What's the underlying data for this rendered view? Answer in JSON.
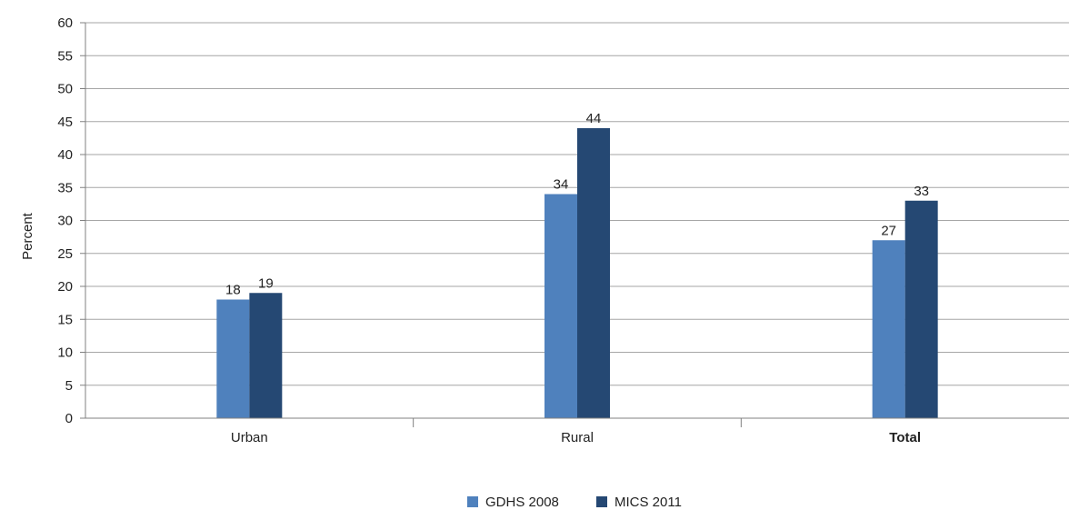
{
  "chart_data": {
    "type": "bar",
    "title": "",
    "xlabel": "",
    "ylabel": "Percent",
    "ylim": [
      0,
      60
    ],
    "ytick_step": 5,
    "grid": true,
    "legend_position": "bottom-center",
    "categories": [
      "Urban",
      "Rural",
      "Total"
    ],
    "bold_categories": [
      "Total"
    ],
    "series": [
      {
        "name": "GDHS 2008",
        "color": "#4f81bd",
        "values": [
          18,
          34,
          27
        ]
      },
      {
        "name": "MICS 2011",
        "color": "#254873",
        "values": [
          19,
          44,
          33
        ]
      }
    ]
  }
}
